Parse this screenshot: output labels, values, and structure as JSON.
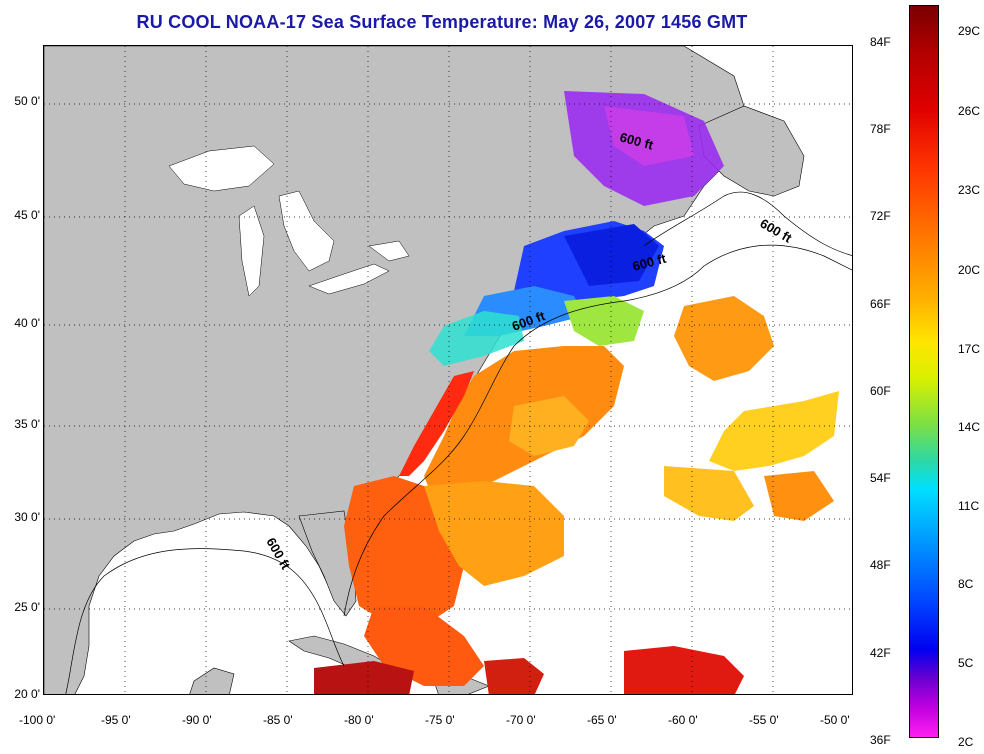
{
  "title": "RU COOL  NOAA-17  Sea Surface Temperature:  May 26, 2007 1456 GMT",
  "map": {
    "lon_labels": [
      "-100 0'",
      "-95 0'",
      "-90 0'",
      "-85 0'",
      "-80 0'",
      "-75 0'",
      "-70 0'",
      "-65 0'",
      "-60 0'",
      "-55 0'",
      "-50 0'"
    ],
    "lat_labels": [
      "50 0'",
      "45 0'",
      "40 0'",
      "35 0'",
      "30 0'",
      "25 0'",
      "20 0'"
    ],
    "contour_label": "600 ft",
    "colors": {
      "land": "#c0c0c0",
      "water": "#ffffff",
      "grid": "#000000"
    }
  },
  "colorbar": {
    "fahrenheit": [
      "84F",
      "78F",
      "72F",
      "66F",
      "60F",
      "54F",
      "48F",
      "42F",
      "36F"
    ],
    "celsius": [
      "29C",
      "26C",
      "23C",
      "20C",
      "17C",
      "14C",
      "11C",
      "8C",
      "5C",
      "2C"
    ]
  }
}
